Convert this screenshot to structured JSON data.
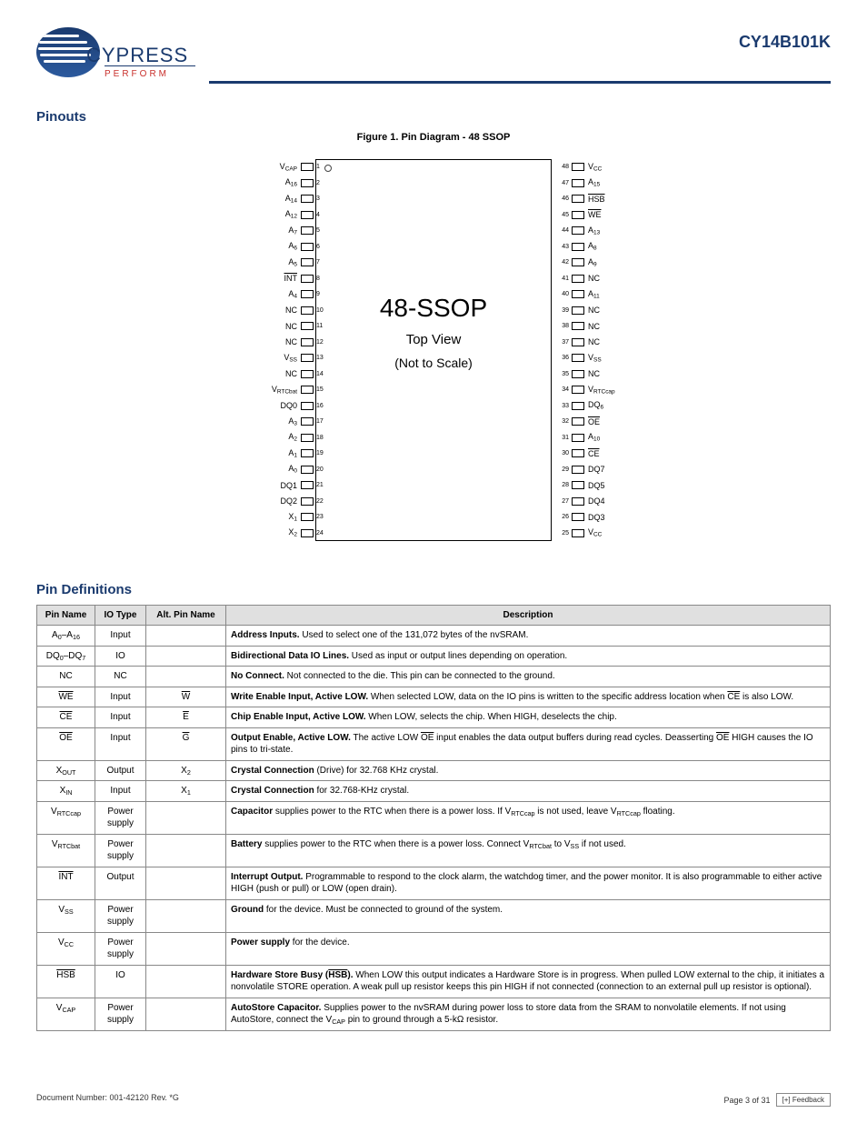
{
  "header": {
    "logo_brand": "CYPRESS",
    "logo_tagline": "PERFORM",
    "part_number": "CY14B101K"
  },
  "section": {
    "pinouts_title": "Pinouts",
    "figure_caption": "Figure 1. Pin Diagram - 48 SSOP",
    "pin_def_title": "Pin Definitions"
  },
  "chip": {
    "title": "48-SSOP",
    "sub1": "Top View",
    "sub2": "(Not to Scale)",
    "pins_left": [
      {
        "num": "1",
        "label": "V<span class='sub'>CAP</span>"
      },
      {
        "num": "2",
        "label": "A<span class='sub'>16</span>"
      },
      {
        "num": "3",
        "label": "A<span class='sub'>14</span>"
      },
      {
        "num": "4",
        "label": "A<span class='sub'>12</span>"
      },
      {
        "num": "5",
        "label": "A<span class='sub'>7</span>"
      },
      {
        "num": "6",
        "label": "A<span class='sub'>6</span>"
      },
      {
        "num": "7",
        "label": "A<span class='sub'>5</span>"
      },
      {
        "num": "8",
        "label": "<span class='overline'>INT</span>"
      },
      {
        "num": "9",
        "label": "A<span class='sub'>4</span>"
      },
      {
        "num": "10",
        "label": "NC"
      },
      {
        "num": "11",
        "label": "NC"
      },
      {
        "num": "12",
        "label": "NC"
      },
      {
        "num": "13",
        "label": "V<span class='sub'>SS</span>"
      },
      {
        "num": "14",
        "label": "NC"
      },
      {
        "num": "15",
        "label": "V<span class='sub'>RTCbat</span>"
      },
      {
        "num": "16",
        "label": "DQ0"
      },
      {
        "num": "17",
        "label": "A<span class='sub'>3</span>"
      },
      {
        "num": "18",
        "label": "A<span class='sub'>2</span>"
      },
      {
        "num": "19",
        "label": "A<span class='sub'>1</span>"
      },
      {
        "num": "20",
        "label": "A<span class='sub'>0</span>"
      },
      {
        "num": "21",
        "label": "DQ1"
      },
      {
        "num": "22",
        "label": "DQ2"
      },
      {
        "num": "23",
        "label": "X<span class='sub'>1</span>"
      },
      {
        "num": "24",
        "label": "X<span class='sub'>2</span>"
      }
    ],
    "pins_right": [
      {
        "num": "48",
        "label": "V<span class='sub'>CC</span>"
      },
      {
        "num": "47",
        "label": "A<span class='sub'>15</span>"
      },
      {
        "num": "46",
        "label": "<span class='overline'>HSB</span>"
      },
      {
        "num": "45",
        "label": "<span class='overline'>WE</span>"
      },
      {
        "num": "44",
        "label": "A<span class='sub'>13</span>"
      },
      {
        "num": "43",
        "label": "A<span class='sub'>8</span>"
      },
      {
        "num": "42",
        "label": "A<span class='sub'>9</span>"
      },
      {
        "num": "41",
        "label": "NC"
      },
      {
        "num": "40",
        "label": "A<span class='sub'>11</span>"
      },
      {
        "num": "39",
        "label": "NC"
      },
      {
        "num": "38",
        "label": "NC"
      },
      {
        "num": "37",
        "label": "NC"
      },
      {
        "num": "36",
        "label": "V<span class='sub'>SS</span>"
      },
      {
        "num": "35",
        "label": "NC"
      },
      {
        "num": "34",
        "label": "V<span class='sub'>RTCcap</span>"
      },
      {
        "num": "33",
        "label": "DQ<span class='sub'>6</span>"
      },
      {
        "num": "32",
        "label": "<span class='overline'>OE</span>"
      },
      {
        "num": "31",
        "label": "A<span class='sub'>10</span>"
      },
      {
        "num": "30",
        "label": "<span class='overline'>CE</span>"
      },
      {
        "num": "29",
        "label": "DQ7"
      },
      {
        "num": "28",
        "label": "DQ5"
      },
      {
        "num": "27",
        "label": "DQ4"
      },
      {
        "num": "26",
        "label": "DQ3"
      },
      {
        "num": "25",
        "label": "V<span class='sub'>CC</span>"
      }
    ]
  },
  "table": {
    "headers": [
      "Pin Name",
      "IO Type",
      "Alt. Pin Name",
      "Description"
    ],
    "col_widths": [
      "64px",
      "56px",
      "88px",
      "auto"
    ],
    "rows": [
      {
        "name": "A<span class='sub'>0</span>–A<span class='sub'>16</span>",
        "io": "Input",
        "alt": "",
        "desc": "<b>Address Inputs.</b> Used to select one of the 131,072 bytes of the nvSRAM."
      },
      {
        "name": "DQ<span class='sub'>0</span>–DQ<span class='sub'>7</span>",
        "io": "IO",
        "alt": "",
        "desc": "<b>Bidirectional Data IO Lines.</b> Used as input or output lines depending on operation."
      },
      {
        "name": "NC",
        "io": "NC",
        "alt": "",
        "desc": "<b>No Connect.</b> Not connected to the die. This pin can be connected to the ground."
      },
      {
        "name": "<span class='overline'>WE</span>",
        "io": "Input",
        "alt": "<span class='overline'>W</span>",
        "desc": "<b>Write Enable Input, Active LOW.</b> When selected LOW, data on the IO pins is written to the specific address location when <span class='overline'>CE</span> is also LOW."
      },
      {
        "name": "<span class='overline'>CE</span>",
        "io": "Input",
        "alt": "<span class='overline'>E</span>",
        "desc": "<b>Chip Enable Input, Active LOW.</b> When LOW, selects the chip. When HIGH, deselects the chip."
      },
      {
        "name": "<span class='overline'>OE</span>",
        "io": "Input",
        "alt": "<span class='overline'>G</span>",
        "desc": "<b>Output Enable, Active LOW.</b> The active LOW <span class='overline'>OE</span> input enables the data output buffers during read cycles. Deasserting <span class='overline'>OE</span> HIGH causes the IO pins to tri-state."
      },
      {
        "name": "X<span class='sub'>OUT</span>",
        "io": "Output",
        "alt": "X<span class='sub'>2</span>",
        "desc": "<b>Crystal Connection</b> (Drive) for 32.768 KHz crystal."
      },
      {
        "name": "X<span class='sub'>IN</span>",
        "io": "Input",
        "alt": "X<span class='sub'>1</span>",
        "desc": "<b>Crystal Connection</b> for 32.768-KHz crystal."
      },
      {
        "name": "V<span class='sub'>RTCcap</span>",
        "io": "Power supply",
        "alt": "",
        "desc": "<b>Capacitor</b> supplies power to the RTC when there is a power loss. If V<span class='sub'>RTCcap</span> is not used, leave V<span class='sub'>RTCcap</span> floating."
      },
      {
        "name": "V<span class='sub'>RTCbat</span>",
        "io": "Power supply",
        "alt": "",
        "desc": "<b>Battery</b> supplies power to the RTC when there is a power loss. Connect V<span class='sub'>RTCbat</span> to V<span class='sub'>SS</span> if not used."
      },
      {
        "name": "<span class='overline'>INT</span>",
        "io": "Output",
        "alt": "",
        "desc": "<b>Interrupt Output.</b> Programmable to respond to the clock alarm, the watchdog timer, and the power monitor. It is also programmable to either active HIGH (push or pull) or LOW (open drain)."
      },
      {
        "name": "V<span class='sub'>SS</span>",
        "io": "Power supply",
        "alt": "",
        "desc": "<b>Ground</b> for the device. Must be connected to ground of the system."
      },
      {
        "name": "V<span class='sub'>CC</span>",
        "io": "Power supply",
        "alt": "",
        "desc": "<b>Power supply</b> for the device."
      },
      {
        "name": "<span class='overline'>HSB</span>",
        "io": "IO",
        "alt": "",
        "desc": "<b>Hardware Store Busy (<span class='overline'>HSB</span>).</b> When LOW this output indicates a Hardware Store is in progress. When pulled LOW external to the chip, it initiates a nonvolatile STORE operation. A weak pull up resistor keeps this pin HIGH if not connected (connection to an external pull up resistor is optional)."
      },
      {
        "name": "V<span class='sub'>CAP</span>",
        "io": "Power supply",
        "alt": "",
        "desc": "<b>AutoStore Capacitor.</b> Supplies power to the nvSRAM during power loss to store data from the SRAM to nonvolatile elements. If not using AutoStore, connect the V<span class='sub'>CAP</span> pin to ground through a 5-kΩ resistor."
      }
    ]
  },
  "footer": {
    "doc": "Document Number: 001-42120 Rev. *G",
    "page": "Page 3 of 31",
    "mark": "[+] Feedback"
  }
}
